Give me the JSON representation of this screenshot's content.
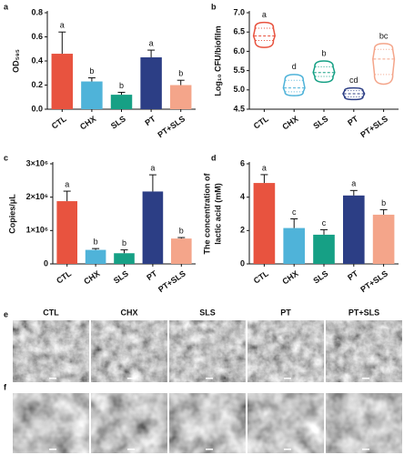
{
  "chart_data": [
    {
      "type": "bar",
      "panel": "a",
      "ylabel": [
        "OD₅₉₅"
      ],
      "categories": [
        "CTL",
        "CHX",
        "SLS",
        "PT",
        "PT+SLS"
      ],
      "values": [
        0.46,
        0.23,
        0.12,
        0.43,
        0.2
      ],
      "errors": [
        0.18,
        0.03,
        0.02,
        0.06,
        0.04
      ],
      "annotations": [
        "a",
        "b",
        "b",
        "a",
        "b"
      ],
      "colors": [
        "#e8533f",
        "#4fb3d9",
        "#16a085",
        "#2c3e85",
        "#f4a58a"
      ],
      "ylim": [
        0,
        0.8
      ],
      "yticks": [
        {
          "value": 0,
          "label": "0.0"
        },
        {
          "value": 0.2,
          "label": "0.2"
        },
        {
          "value": 0.4,
          "label": "0.4"
        },
        {
          "value": 0.6,
          "label": "0.6"
        },
        {
          "value": 0.8,
          "label": "0.8"
        }
      ]
    },
    {
      "type": "violin",
      "panel": "b",
      "ylabel": [
        "Log₁₀ CFU/biofilm"
      ],
      "categories": [
        "CTL",
        "CHX",
        "SLS",
        "PT",
        "PT+SLS"
      ],
      "min": [
        6.1,
        4.85,
        5.2,
        4.75,
        5.15
      ],
      "q1": [
        6.28,
        4.95,
        5.35,
        4.82,
        5.4
      ],
      "median": [
        6.4,
        5.05,
        5.45,
        4.9,
        5.8
      ],
      "q3": [
        6.6,
        5.25,
        5.6,
        4.98,
        6.05
      ],
      "max": [
        6.75,
        5.4,
        5.75,
        5.05,
        6.2
      ],
      "annotations": [
        "a",
        "d",
        "b",
        "cd",
        "bc"
      ],
      "colors": [
        "#e8533f",
        "#4fb3d9",
        "#16a085",
        "#2c3e85",
        "#f4a58a"
      ],
      "ylim": [
        4.5,
        7.0
      ],
      "yticks": [
        4.5,
        {
          "value": 5,
          "label": "5.0"
        },
        5.5,
        {
          "value": 6,
          "label": "6.0"
        },
        6.5,
        {
          "value": 7,
          "label": "7.0"
        }
      ]
    },
    {
      "type": "bar",
      "panel": "c",
      "ylabel": [
        "Copies/μL"
      ],
      "categories": [
        "CTL",
        "CHX",
        "SLS",
        "PT",
        "PT+SLS"
      ],
      "values": [
        1880000,
        420000,
        320000,
        2170000,
        760000
      ],
      "errors": [
        300000,
        40000,
        100000,
        500000,
        30000
      ],
      "annotations": [
        "a",
        "b",
        "b",
        "a",
        "b"
      ],
      "colors": [
        "#e8533f",
        "#4fb3d9",
        "#16a085",
        "#2c3e85",
        "#f4a58a"
      ],
      "ylim": [
        0,
        3000000
      ],
      "yticks": [
        0,
        {
          "value": 1000000,
          "label": "1×10⁶"
        },
        {
          "value": 2000000,
          "label": "2×10⁶"
        },
        {
          "value": 3000000,
          "label": "3×10⁶"
        }
      ]
    },
    {
      "type": "bar",
      "panel": "d",
      "ylabel": [
        "The concentration of",
        "lactic acid (mM)"
      ],
      "categories": [
        "CTL",
        "CHX",
        "SLS",
        "PT",
        "PT+SLS"
      ],
      "values": [
        4.85,
        2.15,
        1.75,
        4.1,
        2.95
      ],
      "errors": [
        0.5,
        0.55,
        0.3,
        0.3,
        0.3
      ],
      "annotations": [
        "a",
        "c",
        "c",
        "a",
        "b"
      ],
      "colors": [
        "#e8533f",
        "#4fb3d9",
        "#16a085",
        "#2c3e85",
        "#f4a58a"
      ],
      "ylim": [
        0,
        6
      ],
      "yticks": [
        0,
        2,
        4,
        6
      ]
    }
  ],
  "micrographs": {
    "panels": [
      "e",
      "f"
    ],
    "columns": [
      "CTL",
      "CHX",
      "SLS",
      "PT",
      "PT+SLS"
    ]
  }
}
